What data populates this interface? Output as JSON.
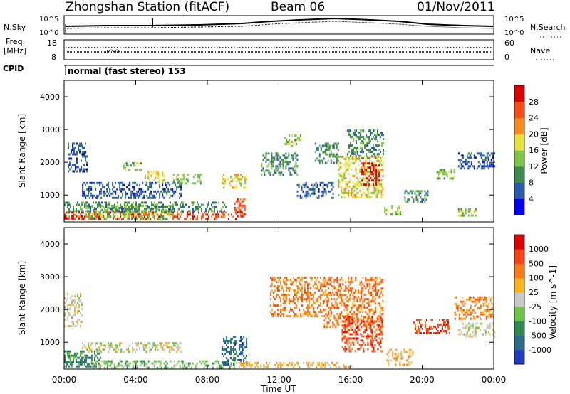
{
  "header": {
    "station": "Zhongshan Station (fitACF)",
    "beam": "Beam 06",
    "date": "01/Nov/2011"
  },
  "panel_labels": {
    "nsky": "N.Sky",
    "nsearch": "N.Search",
    "freq": "Freq.",
    "freq_unit": "[MHz]",
    "nave": "Nave",
    "cpid": "CPID",
    "mode": "normal (fast stereo) 153"
  },
  "noise_panel": {
    "left_ticks": [
      "10^5",
      "10^0"
    ],
    "right_ticks": [
      "10^5",
      "10^0"
    ]
  },
  "freq_panel": {
    "left_ticks": [
      "18",
      "8"
    ],
    "right_ticks": [
      "60",
      "0"
    ]
  },
  "chart_data": [
    {
      "type": "heatmap",
      "name": "power",
      "ylabel": "Slant Range [km]",
      "colorbar_label": "Power [dB]",
      "yticks": [
        "1000",
        "2000",
        "3000",
        "4000"
      ],
      "ylim": [
        180,
        4500
      ],
      "colorbar_ticks": [
        "4",
        "8",
        "12",
        "16",
        "20",
        "24",
        "28"
      ],
      "colorbar_colors": [
        "#0000ff",
        "#2a5ab0",
        "#3f8a4f",
        "#7cc843",
        "#e8e23a",
        "#ff8c1a",
        "#ff4a12",
        "#e00000"
      ],
      "regions": [
        {
          "t0": 0.0,
          "t1": 9.6,
          "r0": 250,
          "r1": 500,
          "level": 6
        },
        {
          "t0": 0.0,
          "t1": 1.6,
          "r0": 250,
          "r1": 380,
          "level": 7
        },
        {
          "t0": 1.2,
          "t1": 6.0,
          "r0": 300,
          "r1": 700,
          "level": 3
        },
        {
          "t0": 0.0,
          "t1": 9.0,
          "r0": 500,
          "r1": 800,
          "level": 2
        },
        {
          "t0": 0.2,
          "t1": 1.3,
          "r0": 1700,
          "r1": 2600,
          "level": 1
        },
        {
          "t0": 1.0,
          "t1": 6.5,
          "r0": 900,
          "r1": 1400,
          "level": 1
        },
        {
          "t0": 3.3,
          "t1": 4.3,
          "r0": 1750,
          "r1": 2000,
          "level": 3
        },
        {
          "t0": 4.5,
          "t1": 5.6,
          "r0": 1400,
          "r1": 1750,
          "level": 4
        },
        {
          "t0": 6.0,
          "t1": 7.7,
          "r0": 1350,
          "r1": 1650,
          "level": 3
        },
        {
          "t0": 8.8,
          "t1": 10.2,
          "r0": 1250,
          "r1": 1650,
          "level": 4
        },
        {
          "t0": 9.5,
          "t1": 10.1,
          "r0": 350,
          "r1": 900,
          "level": 6
        },
        {
          "t0": 11.0,
          "t1": 13.0,
          "r0": 1600,
          "r1": 2300,
          "level": 2
        },
        {
          "t0": 12.3,
          "t1": 13.2,
          "r0": 2500,
          "r1": 2850,
          "level": 3
        },
        {
          "t0": 14.0,
          "t1": 15.3,
          "r0": 2000,
          "r1": 2600,
          "level": 2
        },
        {
          "t0": 15.8,
          "t1": 17.8,
          "r0": 2100,
          "r1": 3000,
          "level": 2
        },
        {
          "t0": 15.3,
          "t1": 17.8,
          "r0": 900,
          "r1": 2200,
          "level": 4
        },
        {
          "t0": 16.6,
          "t1": 17.6,
          "r0": 1300,
          "r1": 2000,
          "level": 7
        },
        {
          "t0": 13.0,
          "t1": 15.0,
          "r0": 900,
          "r1": 1400,
          "level": 1
        },
        {
          "t0": 17.8,
          "t1": 18.8,
          "r0": 420,
          "r1": 700,
          "level": 3
        },
        {
          "t0": 19.0,
          "t1": 20.3,
          "r0": 800,
          "r1": 1150,
          "level": 2
        },
        {
          "t0": 20.8,
          "t1": 21.8,
          "r0": 1500,
          "r1": 1800,
          "level": 3
        },
        {
          "t0": 22.0,
          "t1": 24.0,
          "r0": 1800,
          "r1": 2300,
          "level": 1
        },
        {
          "t0": 22.0,
          "t1": 23.0,
          "r0": 350,
          "r1": 600,
          "level": 3
        }
      ]
    },
    {
      "type": "heatmap",
      "name": "velocity",
      "ylabel": "Slant Range [km]",
      "colorbar_label": "Velocity [m s^-1]",
      "xlabel": "Time UT",
      "xticks": [
        "00:00",
        "04:00",
        "08:00",
        "12:00",
        "16:00",
        "20:00",
        "00:00"
      ],
      "yticks": [
        "1000",
        "2000",
        "3000",
        "4000"
      ],
      "ylim": [
        180,
        4500
      ],
      "colorbar_ticks": [
        "1000",
        "500",
        "100",
        "25",
        "-25",
        "-100",
        "-500",
        "-1000"
      ],
      "colorbar_colors": [
        "#1e3cc8",
        "#2a6a8a",
        "#2e8a4e",
        "#6cc443",
        "#c8c8c8",
        "#ffb21a",
        "#ff7a10",
        "#ff4010",
        "#e00000"
      ],
      "regions": [
        {
          "t0": 0.0,
          "t1": 2.0,
          "r0": 250,
          "r1": 750,
          "level": 2
        },
        {
          "t0": 1.5,
          "t1": 9.5,
          "r0": 250,
          "r1": 450,
          "level": 3
        },
        {
          "t0": 0.0,
          "t1": 1.0,
          "r0": 1500,
          "r1": 2500,
          "level": 4
        },
        {
          "t0": 1.0,
          "t1": 6.5,
          "r0": 700,
          "r1": 1000,
          "level": 4
        },
        {
          "t0": 8.8,
          "t1": 10.2,
          "r0": 300,
          "r1": 1200,
          "level": 1
        },
        {
          "t0": 9.6,
          "t1": 16.0,
          "r0": 250,
          "r1": 400,
          "level": 5
        },
        {
          "t0": 11.5,
          "t1": 14.5,
          "r0": 1800,
          "r1": 3000,
          "level": 6
        },
        {
          "t0": 14.5,
          "t1": 17.8,
          "r0": 1500,
          "r1": 3000,
          "level": 6
        },
        {
          "t0": 15.5,
          "t1": 17.8,
          "r0": 700,
          "r1": 1800,
          "level": 7
        },
        {
          "t0": 18.0,
          "t1": 19.5,
          "r0": 300,
          "r1": 800,
          "level": 5
        },
        {
          "t0": 19.5,
          "t1": 21.5,
          "r0": 1300,
          "r1": 1700,
          "level": 7
        },
        {
          "t0": 21.8,
          "t1": 24.0,
          "r0": 1700,
          "r1": 2400,
          "level": 6
        },
        {
          "t0": 22.0,
          "t1": 24.0,
          "r0": 1200,
          "r1": 1600,
          "level": 4
        }
      ]
    }
  ]
}
